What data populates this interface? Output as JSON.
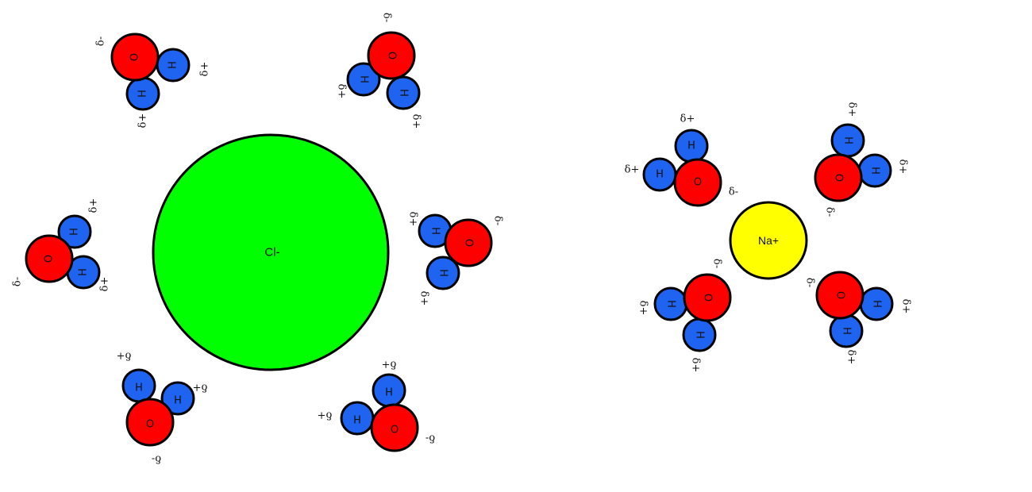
{
  "colors": {
    "chloride": "#00ff00",
    "sodium": "#ffff00",
    "oxygen": "#ff0000",
    "hydrogen": "#1e64f0",
    "outline": "#000000"
  },
  "ions": {
    "chloride": {
      "label": "Cl-"
    },
    "sodium": {
      "label": "Na+"
    }
  },
  "atom_labels": {
    "oxygen": "O",
    "hydrogen": "H"
  },
  "charges": {
    "partial_negative": "δ-",
    "partial_positive": "δ+"
  },
  "molecule_count": {
    "around_chloride": 6,
    "around_sodium": 4
  }
}
